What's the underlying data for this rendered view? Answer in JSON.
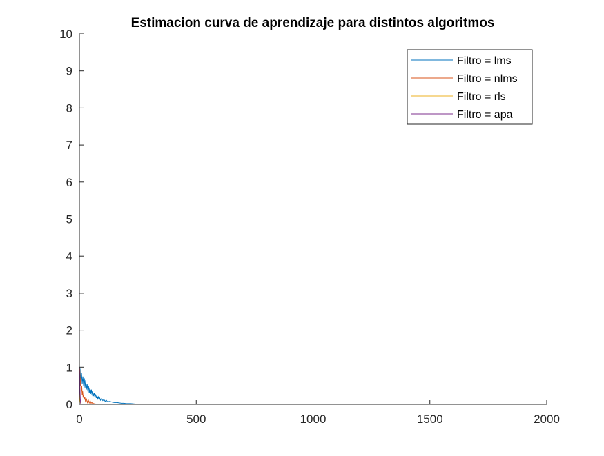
{
  "chart_data": {
    "type": "line",
    "title": "Estimacion curva de aprendizaje para distintos algoritmos",
    "xlabel": "",
    "ylabel": "",
    "xlim": [
      0,
      2000
    ],
    "ylim": [
      0,
      10
    ],
    "xticks": [
      0,
      500,
      1000,
      1500,
      2000
    ],
    "yticks": [
      0,
      1,
      2,
      3,
      4,
      5,
      6,
      7,
      8,
      9,
      10
    ],
    "grid": false,
    "legend_position": "top-right",
    "series": [
      {
        "name": "Filtro = lms",
        "color": "#0072BD",
        "x": [
          0,
          3,
          6,
          9,
          12,
          15,
          18,
          21,
          24,
          27,
          30,
          33,
          36,
          39,
          42,
          45,
          48,
          51,
          54,
          57,
          60,
          63,
          66,
          69,
          72,
          75,
          78,
          81,
          84,
          87,
          90,
          95,
          100,
          105,
          110,
          115,
          120,
          130,
          140,
          150,
          160,
          170,
          180,
          190,
          200,
          220,
          240,
          260,
          300,
          400,
          600,
          1000,
          1500,
          2000
        ],
        "y": [
          1.0,
          0.95,
          0.6,
          0.85,
          0.55,
          0.75,
          0.5,
          0.7,
          0.45,
          0.65,
          0.4,
          0.55,
          0.35,
          0.5,
          0.3,
          0.45,
          0.28,
          0.4,
          0.25,
          0.35,
          0.22,
          0.3,
          0.2,
          0.27,
          0.17,
          0.24,
          0.15,
          0.2,
          0.13,
          0.17,
          0.11,
          0.15,
          0.1,
          0.13,
          0.08,
          0.11,
          0.07,
          0.08,
          0.06,
          0.05,
          0.05,
          0.04,
          0.03,
          0.03,
          0.02,
          0.02,
          0.01,
          0.01,
          0.0,
          0.0,
          0.0,
          0.0,
          0.0,
          0.0
        ]
      },
      {
        "name": "Filtro = nlms",
        "color": "#D95319",
        "x": [
          0,
          2,
          4,
          6,
          8,
          10,
          12,
          14,
          16,
          18,
          20,
          23,
          26,
          30,
          34,
          38,
          42,
          46,
          50,
          55,
          60,
          70,
          80,
          100,
          500,
          1000,
          1500,
          2000
        ],
        "y": [
          1.0,
          0.9,
          0.5,
          0.7,
          0.35,
          0.5,
          0.25,
          0.35,
          0.18,
          0.25,
          0.12,
          0.2,
          0.08,
          0.14,
          0.05,
          0.12,
          0.04,
          0.1,
          0.03,
          0.06,
          0.02,
          0.01,
          0.01,
          0.0,
          0.0,
          0.0,
          0.0,
          0.0
        ]
      },
      {
        "name": "Filtro = rls",
        "color": "#EDB120",
        "x": [
          0,
          2,
          4,
          6,
          8,
          10,
          15,
          500,
          1000,
          1500,
          2000
        ],
        "y": [
          0.6,
          0.15,
          0.05,
          0.02,
          0.01,
          0.0,
          0.0,
          0.0,
          0.0,
          0.0,
          0.0
        ],
        "style": "line"
      },
      {
        "name": "Filtro = apa",
        "color": "#7E2F8E",
        "x": [
          0,
          1,
          2,
          3,
          4,
          5,
          6,
          8,
          10,
          500,
          1000,
          1500,
          2000
        ],
        "y": [
          1.0,
          0.9,
          0.6,
          0.3,
          0.15,
          0.05,
          0.02,
          0.01,
          0.0,
          0.0,
          0.0,
          0.0,
          0.0
        ]
      }
    ]
  }
}
